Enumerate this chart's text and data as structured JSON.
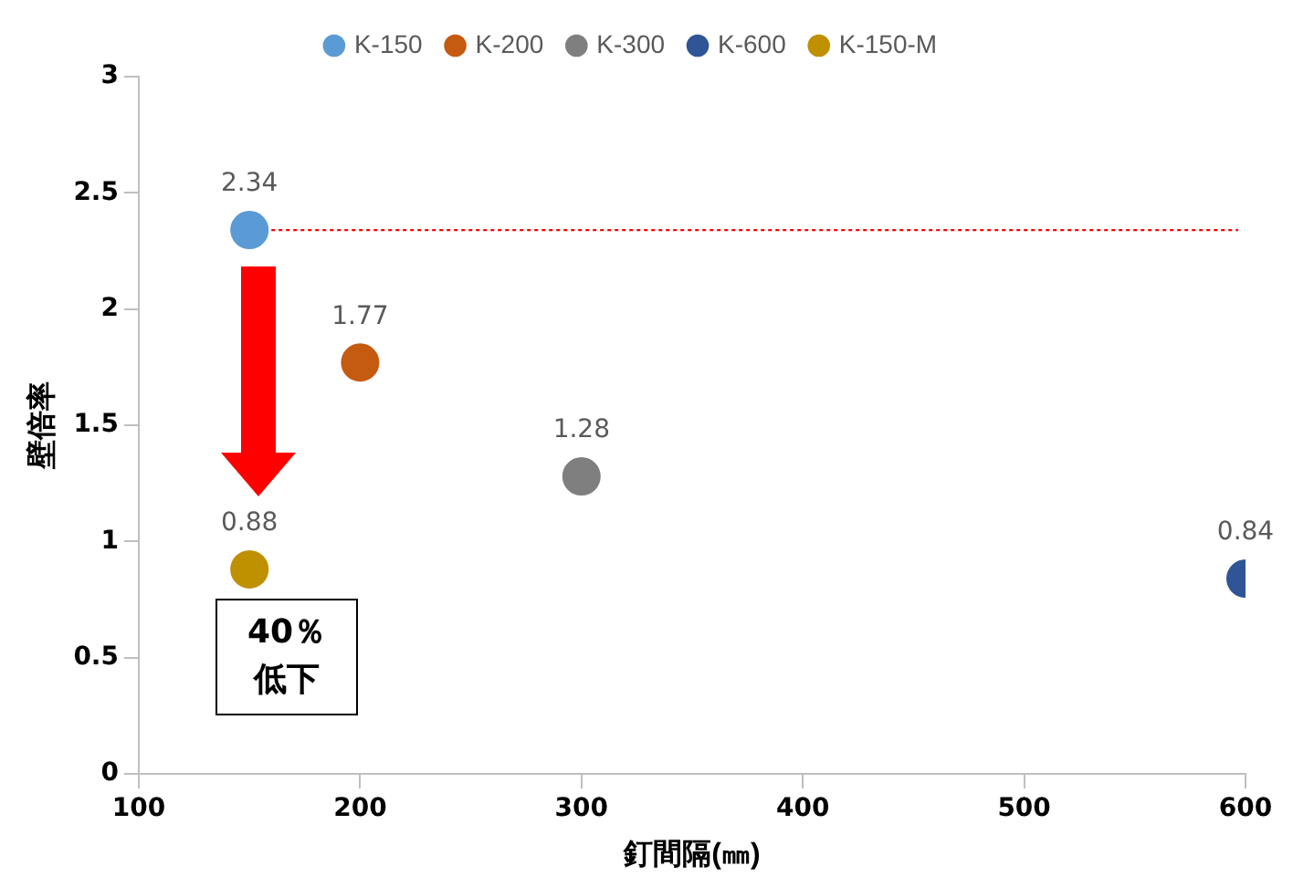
{
  "chart_data": {
    "type": "scatter",
    "xlabel": "釘間隔(㎜)",
    "ylabel": "壁倍率",
    "xlim": [
      100,
      600
    ],
    "xticks": [
      100,
      200,
      300,
      400,
      500,
      600
    ],
    "ylim": [
      0,
      3
    ],
    "yticks": [
      0,
      0.5,
      1,
      1.5,
      2,
      2.5,
      3
    ],
    "grid": false,
    "legend": "top",
    "marker": "circle",
    "data_labels": true,
    "series": [
      {
        "name": "K-150",
        "color": "#5b9bd5",
        "x": [
          150
        ],
        "values": [
          2.34
        ]
      },
      {
        "name": "K-200",
        "color": "#c55a11",
        "x": [
          200
        ],
        "values": [
          1.77
        ]
      },
      {
        "name": "K-300",
        "color": "#7f7f7f",
        "x": [
          300
        ],
        "values": [
          1.28
        ]
      },
      {
        "name": "K-600",
        "color": "#2f5597",
        "x": [
          600
        ],
        "values": [
          0.84
        ]
      },
      {
        "name": "K-150-M",
        "color": "#bf9000",
        "x": [
          150
        ],
        "values": [
          0.88
        ]
      }
    ],
    "ref_lines": [
      {
        "axis": "y",
        "value": 2.34,
        "color": "#ff0000",
        "line_style": "dotted"
      }
    ],
    "annotations": [
      "40％低下"
    ]
  }
}
